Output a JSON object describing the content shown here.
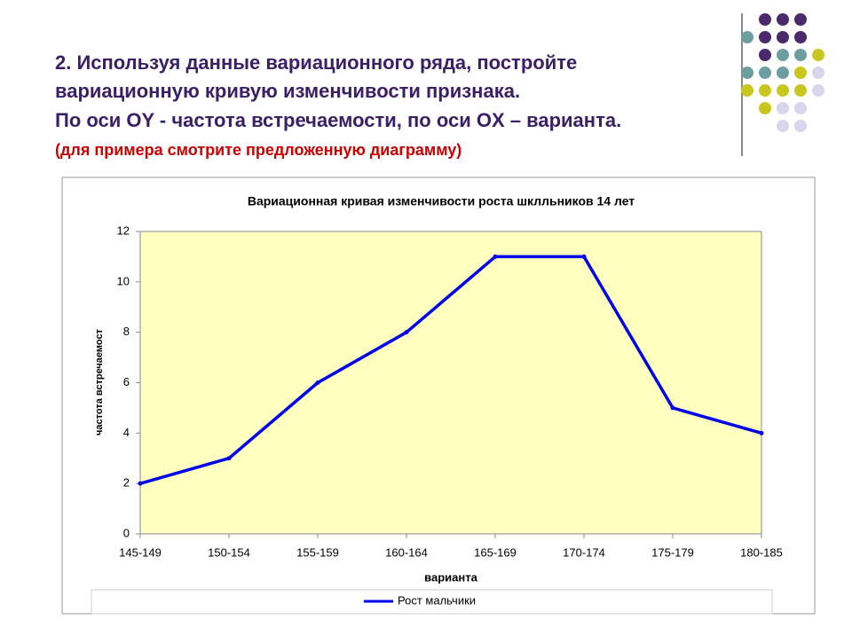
{
  "slide": {
    "heading": [
      "2. Используя данные вариационного ряда, постройте",
      "вариационную кривую изменчивости   признака.",
      "По оси OY - частота встречаемости, по оси OX – варианта."
    ],
    "note": "(для примера смотрите предложенную диаграмму)"
  },
  "chart_data": {
    "type": "line",
    "title": "Вариационная кривая изменчивости роста шклльников 14 лет",
    "x_label": "варианта",
    "y_label": "частота встречаемост",
    "categories": [
      "145-149",
      "150-154",
      "155-159",
      "160-164",
      "165-169",
      "170-174",
      "175-179",
      "180-185"
    ],
    "series": [
      {
        "name": "Рост мальчики",
        "color": "#0000ee",
        "values": [
          2,
          3,
          6,
          8,
          11,
          11,
          5,
          4
        ]
      }
    ],
    "ylim": [
      0,
      12
    ],
    "yticks": [
      0,
      2,
      4,
      6,
      8,
      10,
      12
    ],
    "grid": false,
    "legend": "bottom"
  }
}
